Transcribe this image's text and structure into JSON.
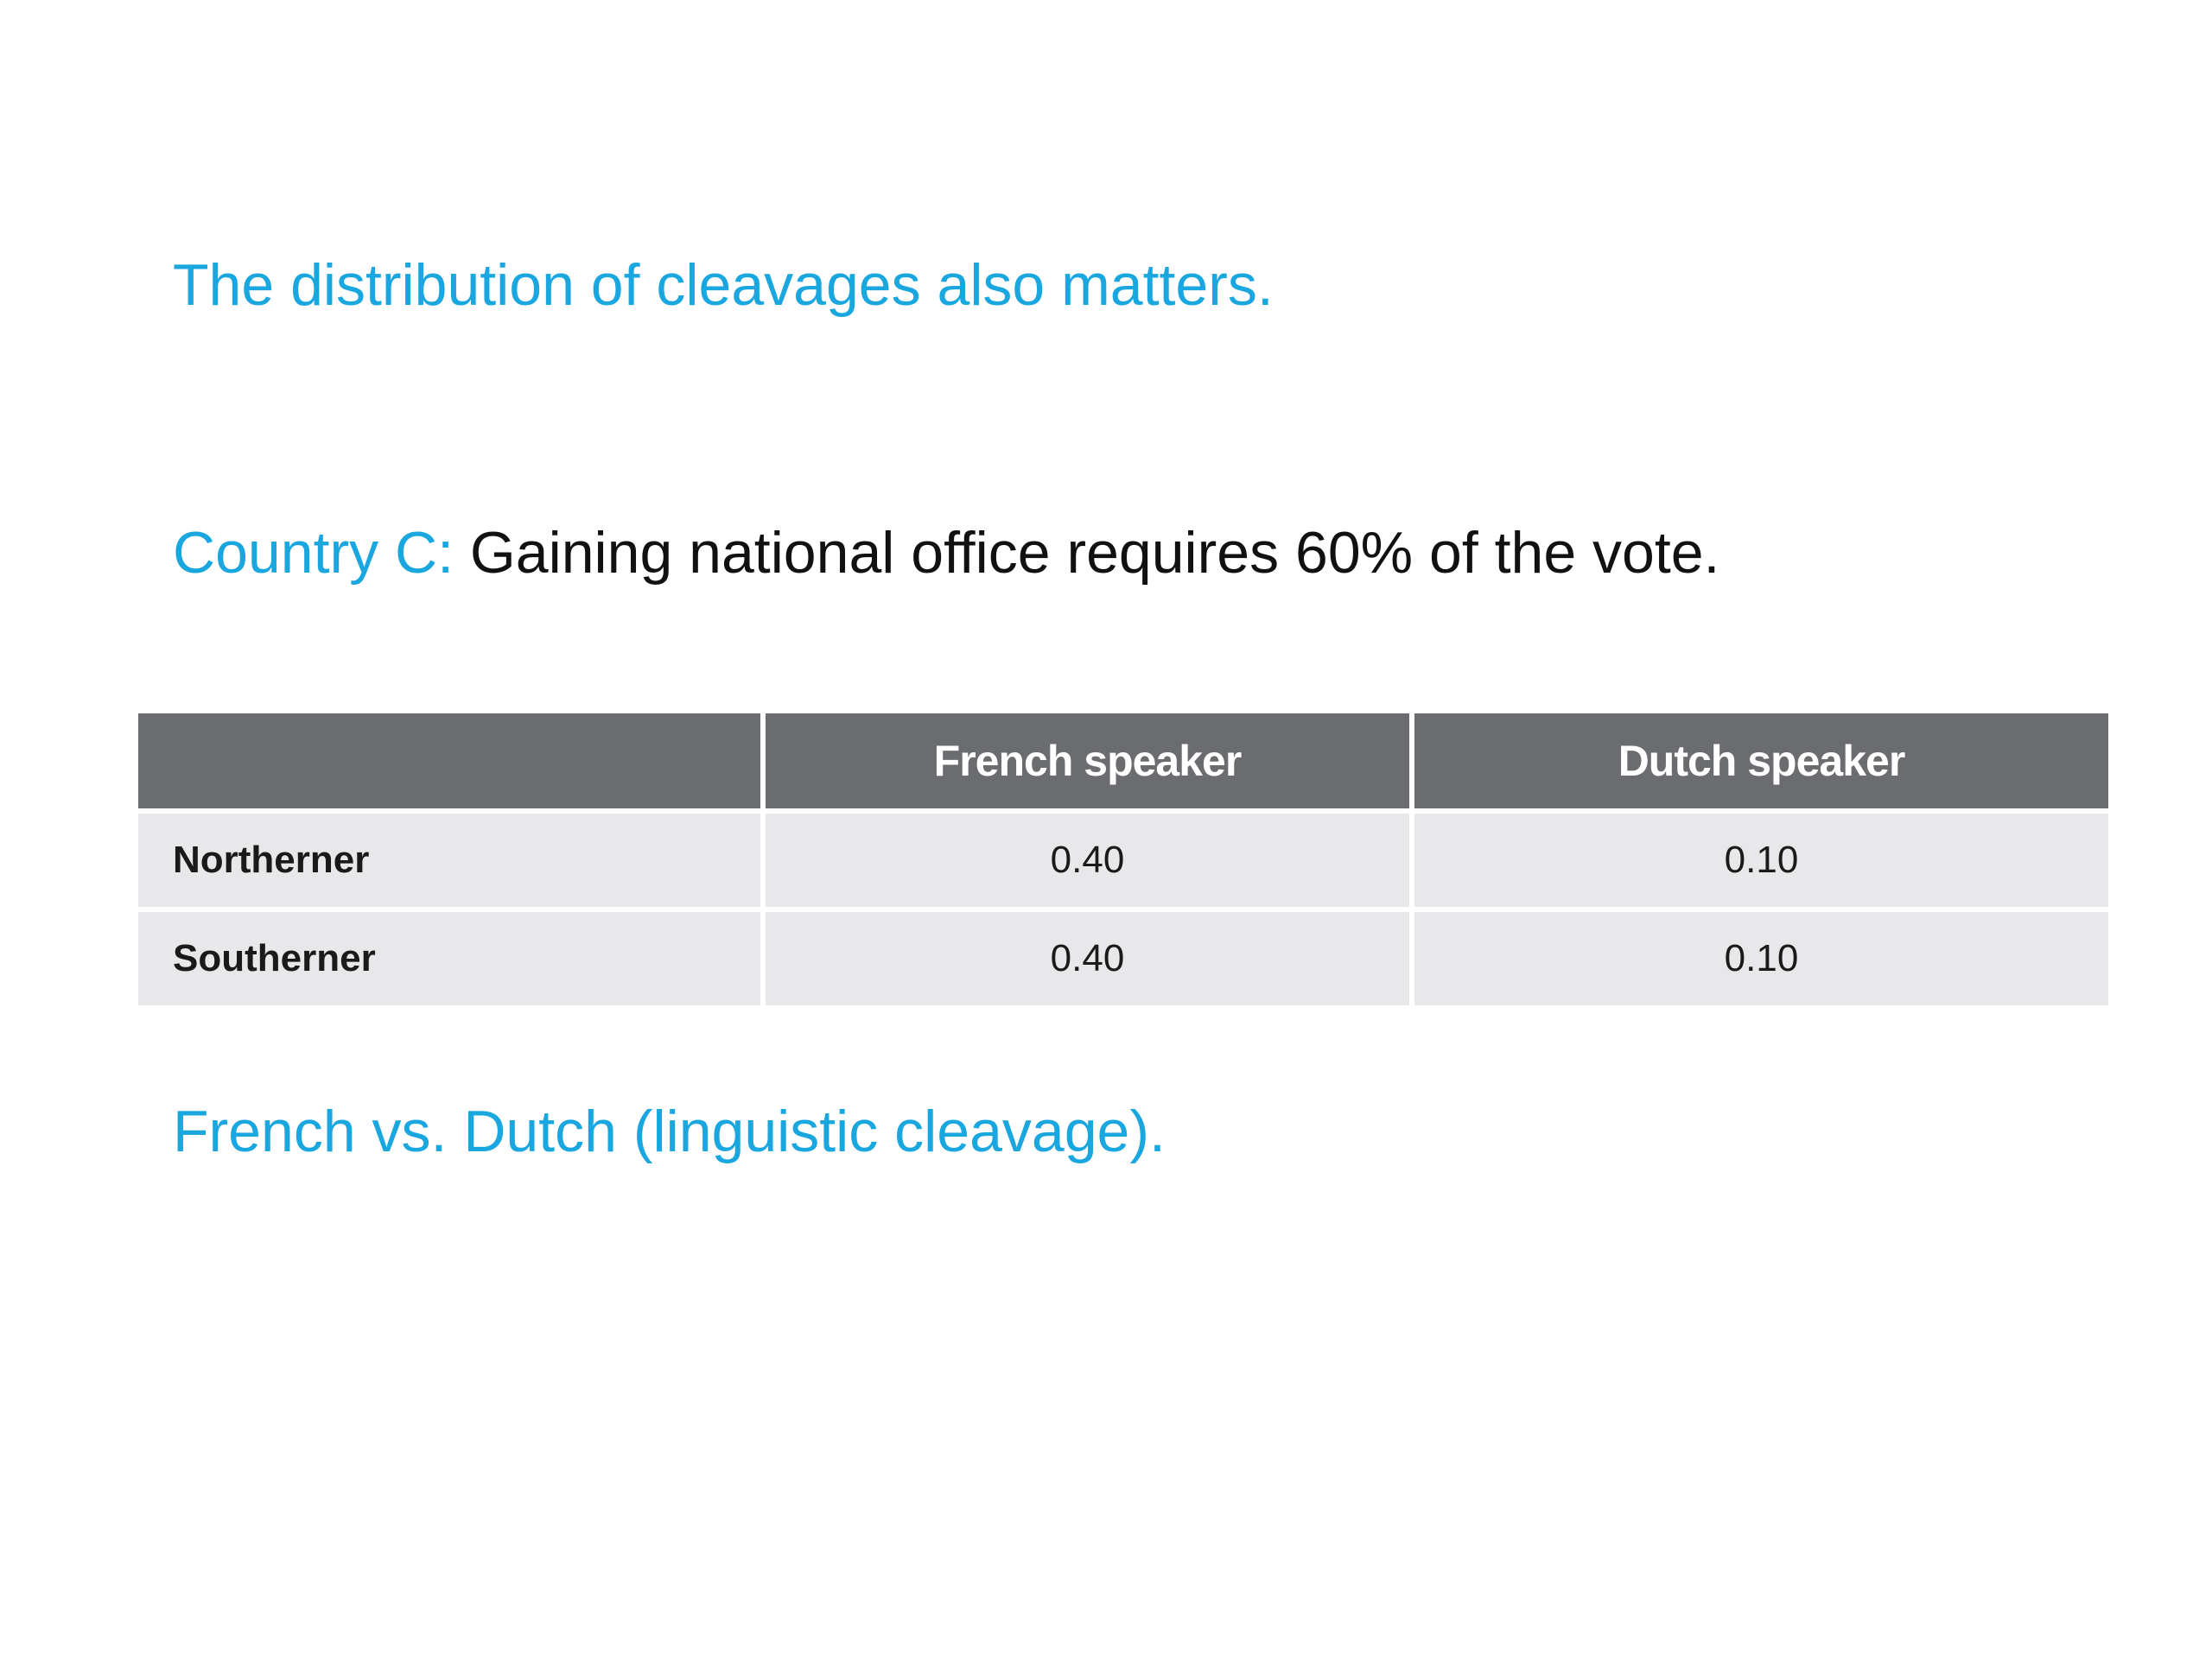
{
  "slide": {
    "heading": "The distribution of cleavages also matters.",
    "country_label": "Country C:",
    "country_text": " Gaining national office requires 60% of the vote.",
    "footer": "French vs. Dutch (linguistic cleavage).",
    "colors": {
      "accent": "#1aa6df",
      "header_bg": "#6b6c6f",
      "cell_bg": "#e8e8ea"
    }
  },
  "table": {
    "headers": [
      "",
      "French speaker",
      "Dutch speaker"
    ],
    "rows": [
      {
        "label": "Northerner",
        "values": [
          "0.40",
          "0.10"
        ]
      },
      {
        "label": "Southerner",
        "values": [
          "0.40",
          "0.10"
        ]
      }
    ]
  }
}
